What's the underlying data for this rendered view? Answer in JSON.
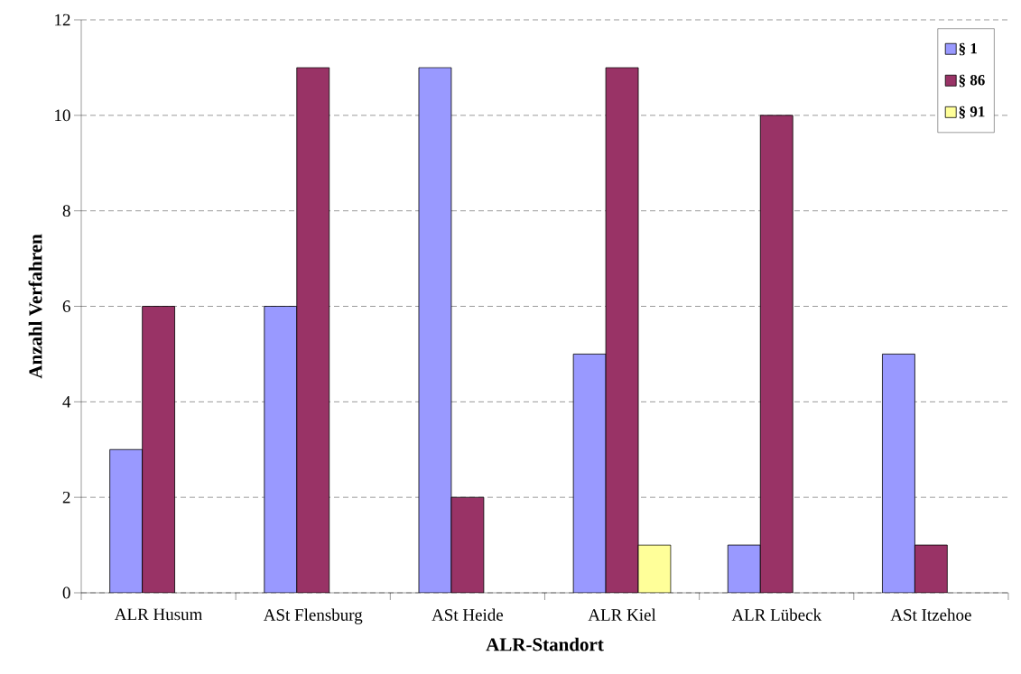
{
  "chart_data": {
    "type": "bar",
    "xlabel": "ALR-Standort",
    "ylabel": "Anzahl Verfahren",
    "categories": [
      "ALR Husum",
      "ASt Flensburg",
      "ASt Heide",
      "ALR Kiel",
      "ALR Lübeck",
      "ASt Itzehoe"
    ],
    "series": [
      {
        "name": "§ 1",
        "color": "#9999ff",
        "values": [
          3,
          6,
          11,
          5,
          1,
          5
        ]
      },
      {
        "name": "§ 86",
        "color": "#993366",
        "values": [
          6,
          11,
          2,
          11,
          10,
          1
        ]
      },
      {
        "name": "§ 91",
        "color": "#ffff99",
        "values": [
          null,
          null,
          null,
          1,
          null,
          null
        ]
      }
    ],
    "ylim": [
      0,
      12
    ],
    "yticks": [
      0,
      2,
      4,
      6,
      8,
      10,
      12
    ],
    "grid": "y",
    "legend": "top right"
  }
}
